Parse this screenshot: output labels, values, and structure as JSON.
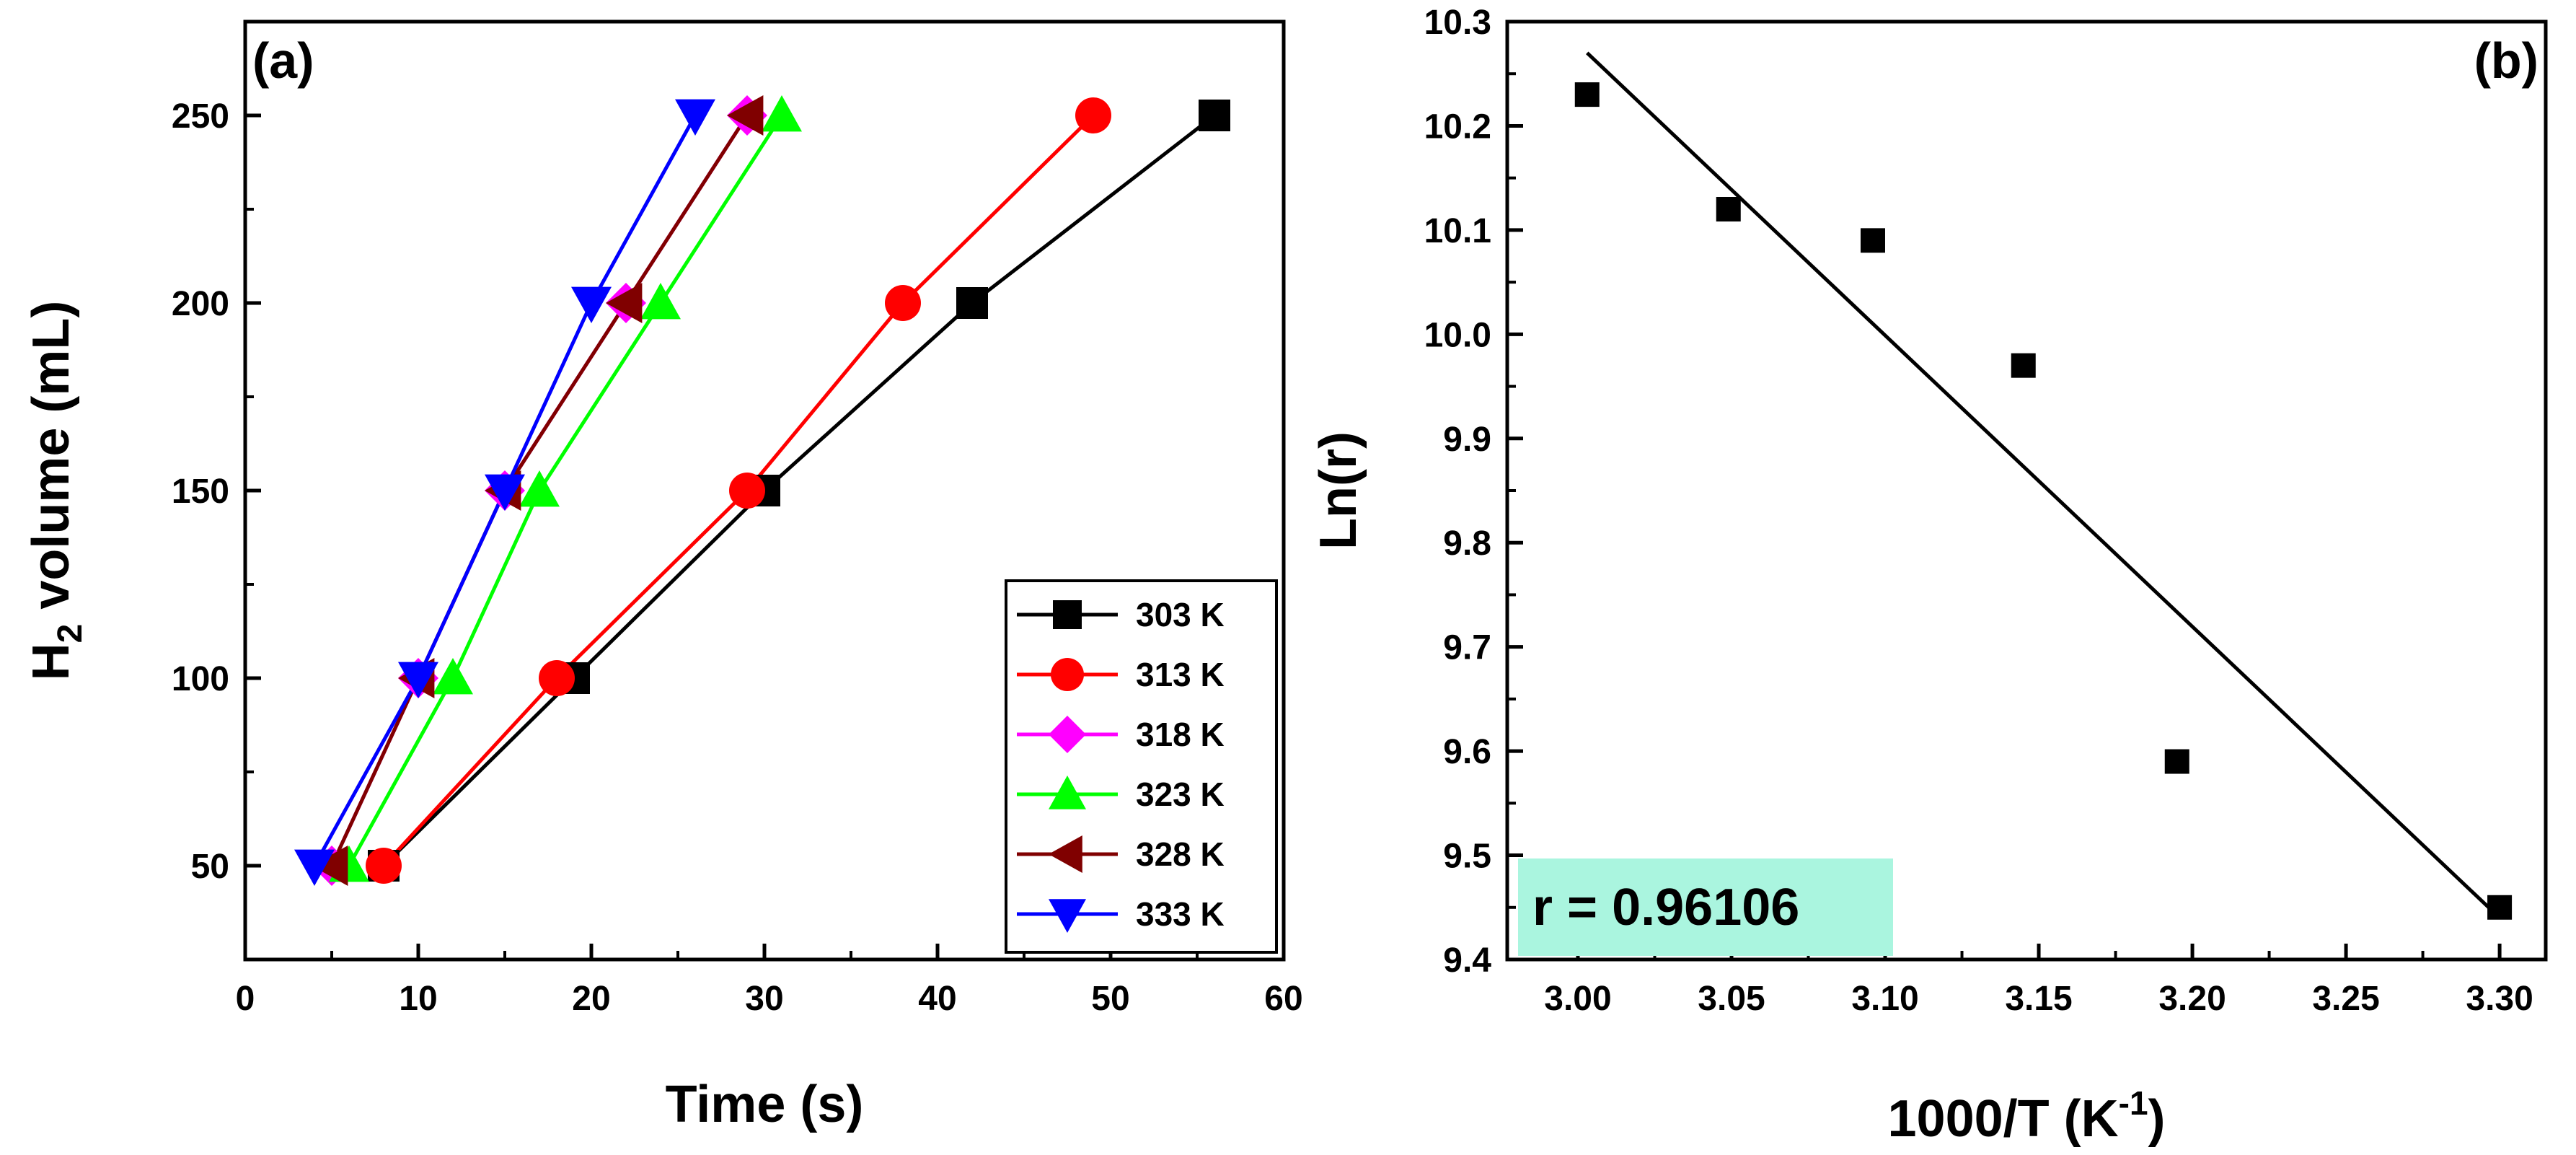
{
  "chart_data": [
    {
      "type": "line",
      "panel_label": "(a)",
      "xlabel": "Time (s)",
      "ylabel_main": "H",
      "ylabel_sub": "2",
      "ylabel_rest": " volume (mL)",
      "xlim": [
        0,
        60
      ],
      "ylim": [
        25,
        275
      ],
      "xticks": [
        0,
        10,
        20,
        30,
        40,
        50,
        60
      ],
      "yticks": [
        50,
        100,
        150,
        200,
        250
      ],
      "xtick_labels": [
        "0",
        "10",
        "20",
        "30",
        "40",
        "50",
        "60"
      ],
      "ytick_labels": [
        "50",
        "100",
        "150",
        "200",
        "250"
      ],
      "legend_position": "bottom-right",
      "series": [
        {
          "name": "303 K",
          "color": "#000000",
          "marker": "square",
          "x": [
            8,
            19,
            30,
            42,
            56
          ],
          "y": [
            50,
            100,
            150,
            200,
            250
          ]
        },
        {
          "name": "313 K",
          "color": "#ff0000",
          "marker": "circle",
          "x": [
            8,
            18,
            29,
            38,
            49
          ],
          "y": [
            50,
            100,
            150,
            200,
            250
          ]
        },
        {
          "name": "318 K",
          "color": "#ff00ff",
          "marker": "diamond",
          "x": [
            5,
            10,
            15,
            22,
            29
          ],
          "y": [
            50,
            100,
            150,
            200,
            250
          ]
        },
        {
          "name": "323 K",
          "color": "#00ff00",
          "marker": "triangle-up",
          "x": [
            6,
            12,
            17,
            24,
            31
          ],
          "y": [
            50,
            100,
            150,
            200,
            250
          ]
        },
        {
          "name": "328 K",
          "color": "#800000",
          "marker": "triangle-left",
          "x": [
            5,
            10,
            15,
            22,
            29
          ],
          "y": [
            50,
            100,
            150,
            200,
            250
          ]
        },
        {
          "name": "333 K",
          "color": "#0000ff",
          "marker": "triangle-down",
          "x": [
            4,
            10,
            15,
            20,
            26
          ],
          "y": [
            50,
            100,
            150,
            200,
            250
          ]
        }
      ]
    },
    {
      "type": "scatter",
      "panel_label": "(b)",
      "xlabel_main": "1000/T (K",
      "xlabel_sup": "-1",
      "xlabel_end": ")",
      "ylabel": "Ln(r)",
      "xlim": [
        2.977,
        3.315
      ],
      "ylim": [
        9.4,
        10.3
      ],
      "xticks": [
        3.0,
        3.05,
        3.1,
        3.15,
        3.2,
        3.25,
        3.3
      ],
      "yticks": [
        9.4,
        9.5,
        9.6,
        9.7,
        9.8,
        9.9,
        10.0,
        10.1,
        10.2,
        10.3
      ],
      "xtick_labels": [
        "3.00",
        "3.05",
        "3.10",
        "3.15",
        "3.20",
        "3.25",
        "3.30"
      ],
      "ytick_labels": [
        "9.4",
        "9.5",
        "9.6",
        "9.7",
        "9.8",
        "9.9",
        "10.0",
        "10.1",
        "10.2",
        "10.3"
      ],
      "points": {
        "x": [
          3.003,
          3.049,
          3.096,
          3.145,
          3.195,
          3.3
        ],
        "y": [
          10.23,
          10.12,
          10.09,
          9.97,
          9.59,
          9.45
        ]
      },
      "fit_line": {
        "x": [
          3.003,
          3.3
        ],
        "y": [
          10.27,
          9.44
        ]
      },
      "annotation": "r = 0.96106",
      "annotation_bg": "#aaf5df"
    }
  ]
}
